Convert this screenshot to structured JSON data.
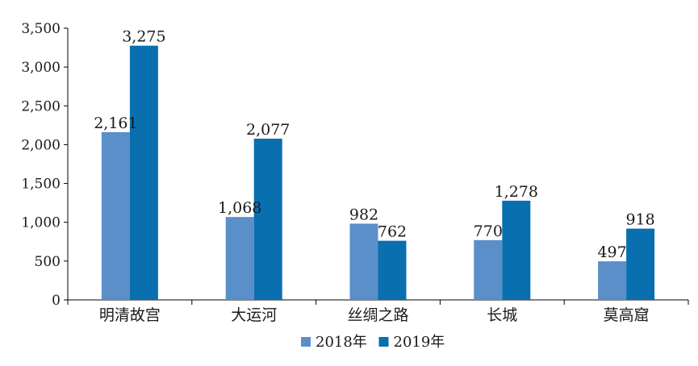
{
  "chart_data": {
    "type": "bar",
    "title": "",
    "xlabel": "",
    "ylabel": "",
    "categories": [
      "明清故宫",
      "大运河",
      "丝绸之路",
      "长城",
      "莫高窟"
    ],
    "series": [
      {
        "name": "2018年",
        "values": [
          2161,
          1068,
          982,
          770,
          497
        ],
        "labels": [
          "2,161",
          "1,068",
          "982",
          "770",
          "497"
        ],
        "color": "#5b8fca"
      },
      {
        "name": "2019年",
        "values": [
          3275,
          2077,
          762,
          1278,
          918
        ],
        "labels": [
          "3,275",
          "2,077",
          "762",
          "1,278",
          "918"
        ],
        "color": "#0a6fae"
      }
    ],
    "ylim": [
      0,
      3500
    ],
    "yticks": [
      0,
      500,
      1000,
      1500,
      2000,
      2500,
      3000,
      3500
    ],
    "ytick_labels": [
      "0",
      "500",
      "1,000",
      "1,500",
      "2,000",
      "2,500",
      "3,000",
      "3,500"
    ],
    "grid": false,
    "legend_position": "bottom-center"
  }
}
